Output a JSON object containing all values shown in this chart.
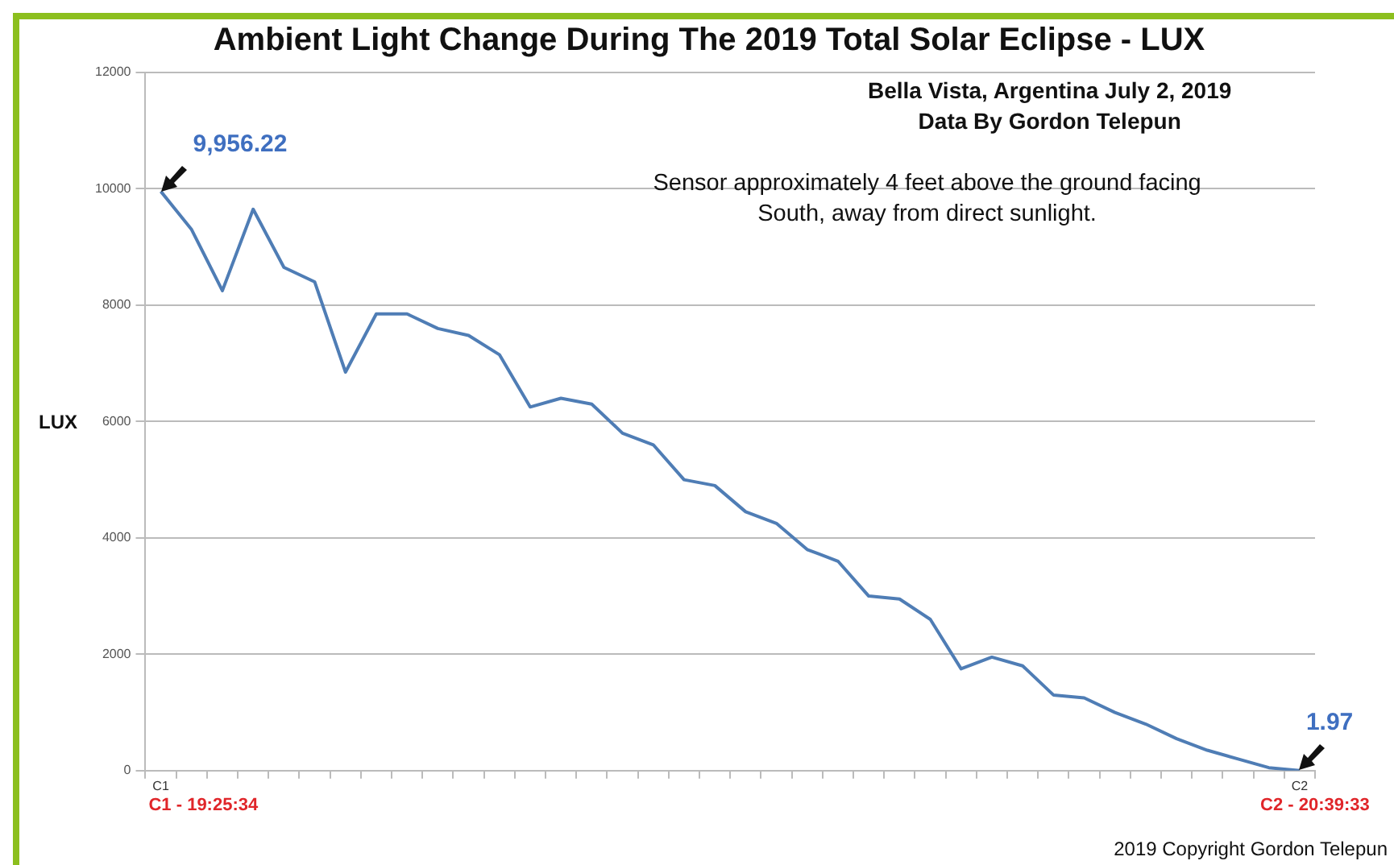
{
  "chart_data": {
    "type": "line",
    "title": "Ambient Light Change During The 2019 Total Solar Eclipse - LUX",
    "subtitle": "Bella Vista, Argentina July 2, 2019\nData By Gordon Telepun",
    "ylabel": "LUX",
    "categories": [
      "C1",
      null,
      null,
      null,
      null,
      null,
      null,
      null,
      null,
      null,
      null,
      null,
      null,
      null,
      null,
      null,
      null,
      null,
      null,
      null,
      null,
      null,
      null,
      null,
      null,
      null,
      null,
      null,
      null,
      null,
      null,
      null,
      null,
      null,
      null,
      null,
      null,
      "C2"
    ],
    "values": [
      9956.22,
      9300,
      8250,
      9650,
      8650,
      8400,
      6850,
      7850,
      7850,
      7600,
      7480,
      7150,
      6250,
      6400,
      6300,
      5800,
      5600,
      5000,
      4900,
      4450,
      4250,
      3800,
      3600,
      3000,
      2950,
      2600,
      1750,
      1950,
      1800,
      1300,
      1250,
      1000,
      800,
      550,
      350,
      200,
      50,
      1.97
    ],
    "value_labels": [
      "9,956.22",
      null,
      null,
      null,
      null,
      null,
      null,
      null,
      null,
      null,
      null,
      null,
      null,
      null,
      null,
      null,
      null,
      null,
      null,
      null,
      null,
      null,
      null,
      null,
      null,
      null,
      null,
      null,
      null,
      null,
      null,
      null,
      null,
      null,
      null,
      null,
      null,
      "1.97"
    ],
    "color": "#4f7db5",
    "ylim": [
      0,
      12000
    ],
    "yticks": [
      0,
      2000,
      4000,
      6000,
      8000,
      10000,
      12000
    ],
    "grid": "y",
    "marker": "none",
    "line_style": "solid",
    "annotations": [
      "Sensor approximately 4 feet above the ground facing South, away from direct sunlight.",
      "C1 - 19:25:34",
      "C2 - 20:39:33",
      "2019 Copyright Gordon Telepun"
    ]
  }
}
